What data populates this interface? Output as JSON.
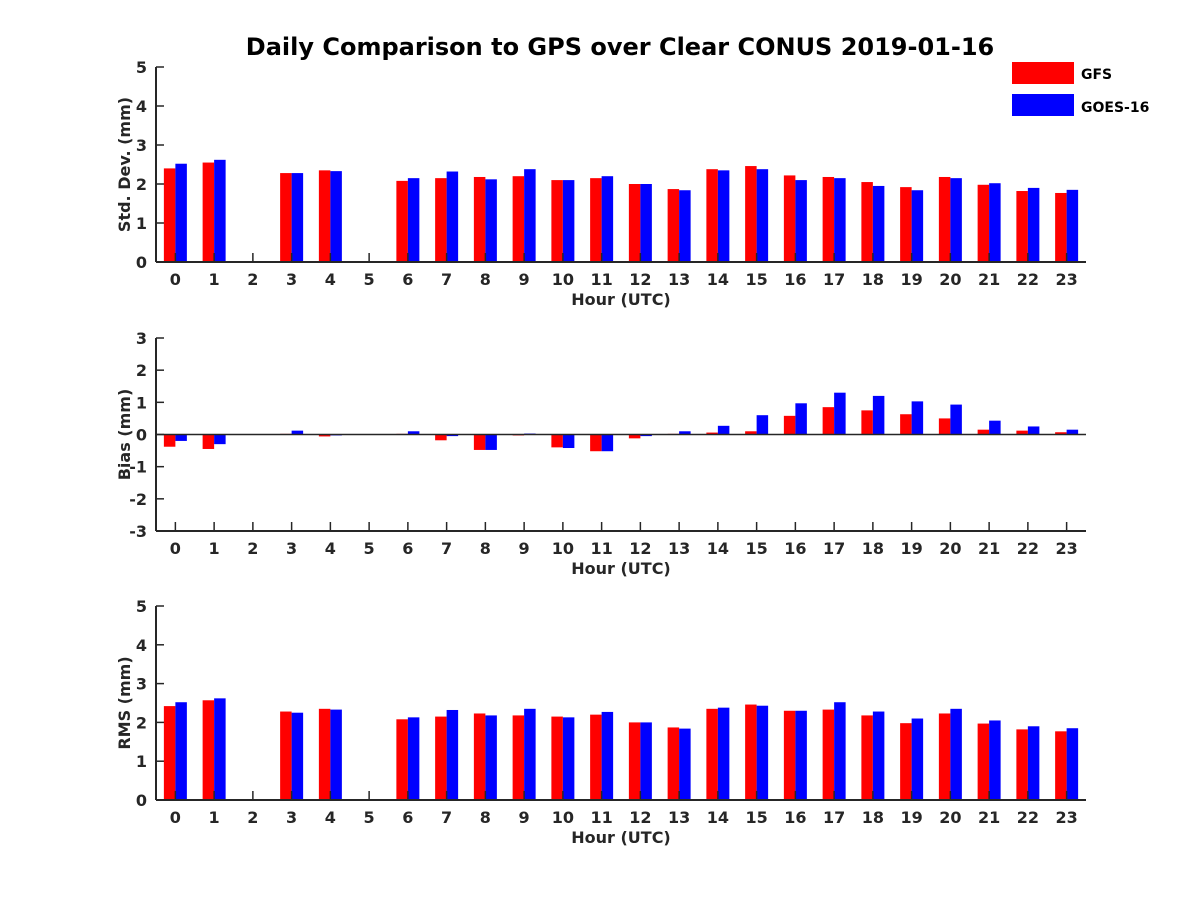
{
  "title": "Daily Comparison to GPS over Clear CONUS 2019-01-16",
  "legend": [
    {
      "label": "GFS",
      "color": "#ff0000"
    },
    {
      "label": "GOES-16",
      "color": "#0000ff"
    }
  ],
  "chart_data": [
    {
      "type": "bar",
      "title": "Daily Comparison to GPS over Clear CONUS 2019-01-16",
      "xlabel": "Hour (UTC)",
      "ylabel": "Std. Dev. (mm)",
      "ylim": [
        0,
        5
      ],
      "yticks": [
        0,
        1,
        2,
        3,
        4,
        5
      ],
      "categories": [
        "0",
        "1",
        "2",
        "3",
        "4",
        "5",
        "6",
        "7",
        "8",
        "9",
        "10",
        "11",
        "12",
        "13",
        "14",
        "15",
        "16",
        "17",
        "18",
        "19",
        "20",
        "21",
        "22",
        "23"
      ],
      "series": [
        {
          "name": "GFS",
          "color": "#ff0000",
          "values": [
            2.4,
            2.55,
            null,
            2.28,
            2.35,
            null,
            2.08,
            2.15,
            2.18,
            2.2,
            2.1,
            2.15,
            2.0,
            1.87,
            2.38,
            2.46,
            2.22,
            2.18,
            2.05,
            1.92,
            2.18,
            1.98,
            1.82,
            1.77
          ]
        },
        {
          "name": "GOES-16",
          "color": "#0000ff",
          "values": [
            2.52,
            2.62,
            null,
            2.28,
            2.33,
            null,
            2.15,
            2.32,
            2.12,
            2.38,
            2.1,
            2.2,
            2.0,
            1.84,
            2.35,
            2.38,
            2.1,
            2.15,
            1.95,
            1.84,
            2.15,
            2.02,
            1.9,
            1.85
          ]
        }
      ]
    },
    {
      "type": "bar",
      "xlabel": "Hour (UTC)",
      "ylabel": "Bias (mm)",
      "ylim": [
        -3,
        3
      ],
      "yticks": [
        -3,
        -2,
        -1,
        0,
        1,
        2,
        3
      ],
      "categories": [
        "0",
        "1",
        "2",
        "3",
        "4",
        "5",
        "6",
        "7",
        "8",
        "9",
        "10",
        "11",
        "12",
        "13",
        "14",
        "15",
        "16",
        "17",
        "18",
        "19",
        "20",
        "21",
        "22",
        "23"
      ],
      "series": [
        {
          "name": "GFS",
          "color": "#ff0000",
          "values": [
            -0.38,
            -0.45,
            null,
            0.02,
            -0.06,
            null,
            0.02,
            -0.18,
            -0.48,
            -0.03,
            -0.4,
            -0.52,
            -0.12,
            0.02,
            0.06,
            0.1,
            0.58,
            0.85,
            0.75,
            0.63,
            0.5,
            0.15,
            0.12,
            0.07
          ]
        },
        {
          "name": "GOES-16",
          "color": "#0000ff",
          "values": [
            -0.2,
            -0.3,
            null,
            0.12,
            -0.03,
            null,
            0.1,
            -0.05,
            -0.48,
            0.03,
            -0.42,
            -0.52,
            -0.05,
            0.1,
            0.27,
            0.6,
            0.97,
            1.3,
            1.2,
            1.03,
            0.93,
            0.43,
            0.25,
            0.15
          ]
        }
      ]
    },
    {
      "type": "bar",
      "xlabel": "Hour (UTC)",
      "ylabel": "RMS (mm)",
      "ylim": [
        0,
        5
      ],
      "yticks": [
        0,
        1,
        2,
        3,
        4,
        5
      ],
      "categories": [
        "0",
        "1",
        "2",
        "3",
        "4",
        "5",
        "6",
        "7",
        "8",
        "9",
        "10",
        "11",
        "12",
        "13",
        "14",
        "15",
        "16",
        "17",
        "18",
        "19",
        "20",
        "21",
        "22",
        "23"
      ],
      "series": [
        {
          "name": "GFS",
          "color": "#ff0000",
          "values": [
            2.42,
            2.57,
            null,
            2.28,
            2.35,
            null,
            2.08,
            2.15,
            2.23,
            2.18,
            2.15,
            2.2,
            2.0,
            1.87,
            2.35,
            2.46,
            2.3,
            2.33,
            2.18,
            1.98,
            2.23,
            1.97,
            1.82,
            1.77
          ]
        },
        {
          "name": "GOES-16",
          "color": "#0000ff",
          "values": [
            2.52,
            2.62,
            null,
            2.25,
            2.33,
            null,
            2.13,
            2.32,
            2.18,
            2.35,
            2.13,
            2.27,
            2.0,
            1.84,
            2.38,
            2.43,
            2.3,
            2.52,
            2.28,
            2.1,
            2.35,
            2.05,
            1.9,
            1.85
          ]
        }
      ]
    }
  ]
}
